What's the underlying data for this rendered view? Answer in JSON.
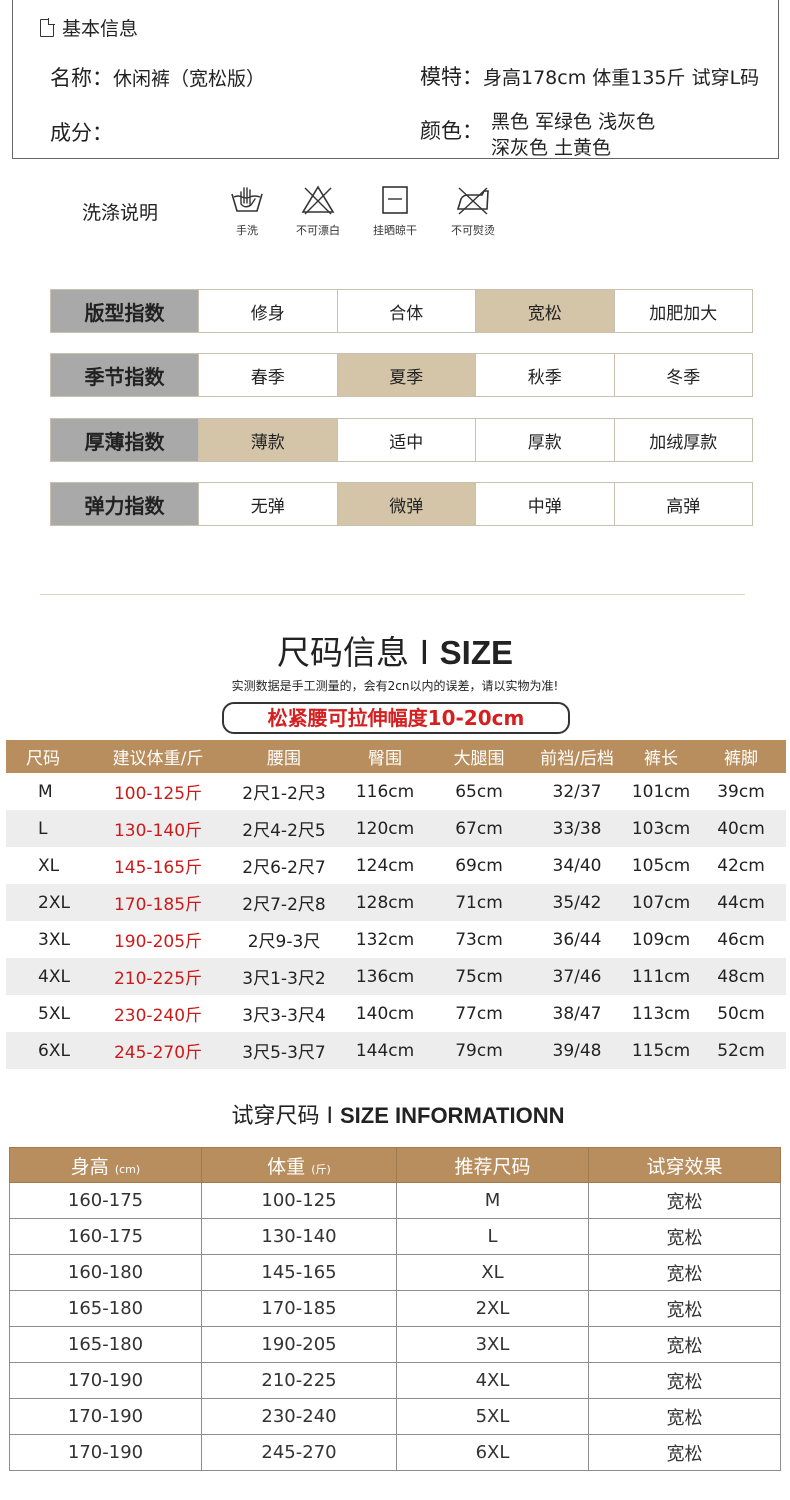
{
  "basic_info": {
    "title": "基本信息",
    "name_label": "名称：",
    "name_value": "休闲裤（宽松版）",
    "model_label": "模特：",
    "model_value": "身高178cm  体重135斤  试穿L码",
    "composition_label": "成分：",
    "color_label": "颜色：",
    "colors_line1": "黑色  军绿色  浅灰色",
    "colors_line2": "深灰色  土黄色"
  },
  "wash": {
    "title": "洗涤说明",
    "items": [
      {
        "icon": "hand-wash-icon",
        "label": "手洗"
      },
      {
        "icon": "no-bleach-icon",
        "label": "不可漂白"
      },
      {
        "icon": "line-dry-icon",
        "label": "挂晒晾干"
      },
      {
        "icon": "no-iron-icon",
        "label": "不可熨烫"
      }
    ]
  },
  "indices": [
    {
      "label": "版型指数",
      "options": [
        "修身",
        "合体",
        "宽松",
        "加肥加大"
      ],
      "selected": 2
    },
    {
      "label": "季节指数",
      "options": [
        "春季",
        "夏季",
        "秋季",
        "冬季"
      ],
      "selected": 1
    },
    {
      "label": "厚薄指数",
      "options": [
        "薄款",
        "适中",
        "厚款",
        "加绒厚款"
      ],
      "selected": 0
    },
    {
      "label": "弹力指数",
      "options": [
        "无弹",
        "微弹",
        "中弹",
        "高弹"
      ],
      "selected": 1
    }
  ],
  "size_section": {
    "title": "尺码信息 I ",
    "title_en": "SIZE",
    "note": "实测数据是手工测量的，会有2cn以内的误差，请以实物为准!",
    "stretch_note": "松紧腰可拉伸幅度10-20cm",
    "headers": [
      "尺码",
      "建议体重/斤",
      "腰围",
      "臀围",
      "大腿围",
      "前裆/后档",
      "裤长",
      "裤脚"
    ],
    "rows": [
      [
        "M",
        "100-125斤",
        "2尺1-2尺3",
        "116cm",
        "65cm",
        "32/37",
        "101cm",
        "39cm"
      ],
      [
        "L",
        "130-140斤",
        "2尺4-2尺5",
        "120cm",
        "67cm",
        "33/38",
        "103cm",
        "40cm"
      ],
      [
        "XL",
        "145-165斤",
        "2尺6-2尺7",
        "124cm",
        "69cm",
        "34/40",
        "105cm",
        "42cm"
      ],
      [
        "2XL",
        "170-185斤",
        "2尺7-2尺8",
        "128cm",
        "71cm",
        "35/42",
        "107cm",
        "44cm"
      ],
      [
        "3XL",
        "190-205斤",
        "2尺9-3尺",
        "132cm",
        "73cm",
        "36/44",
        "109cm",
        "46cm"
      ],
      [
        "4XL",
        "210-225斤",
        "3尺1-3尺2",
        "136cm",
        "75cm",
        "37/46",
        "111cm",
        "48cm"
      ],
      [
        "5XL",
        "230-240斤",
        "3尺3-3尺4",
        "140cm",
        "77cm",
        "38/47",
        "113cm",
        "50cm"
      ],
      [
        "6XL",
        "245-270斤",
        "3尺5-3尺7",
        "144cm",
        "79cm",
        "39/48",
        "115cm",
        "52cm"
      ]
    ]
  },
  "tryon_section": {
    "title": "试穿尺码 I ",
    "title_en": "SIZE INFORMATIONN",
    "headers": [
      "身高",
      "体重",
      "推荐尺码",
      "试穿效果"
    ],
    "header_units": [
      "(cm)",
      "(斤)",
      "",
      ""
    ],
    "rows": [
      [
        "160-175",
        "100-125",
        "M",
        "宽松"
      ],
      [
        "160-175",
        "130-140",
        "L",
        "宽松"
      ],
      [
        "160-180",
        "145-165",
        "XL",
        "宽松"
      ],
      [
        "165-180",
        "170-185",
        "2XL",
        "宽松"
      ],
      [
        "165-180",
        "190-205",
        "3XL",
        "宽松"
      ],
      [
        "170-190",
        "210-225",
        "4XL",
        "宽松"
      ],
      [
        "170-190",
        "230-240",
        "5XL",
        "宽松"
      ],
      [
        "170-190",
        "245-270",
        "6XL",
        "宽松"
      ]
    ]
  },
  "colors": {
    "accent": "#b98e5e",
    "selected": "#d4c5a9",
    "label_bg": "#a9a9a9",
    "weight_red": "#cc1a1a"
  }
}
